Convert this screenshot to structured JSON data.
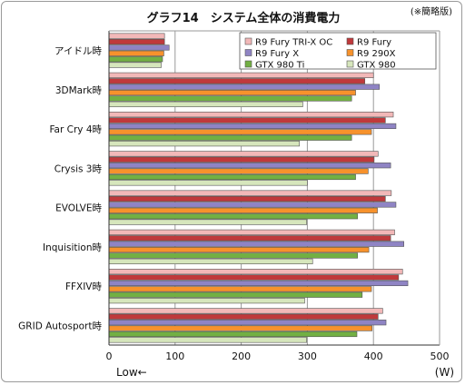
{
  "chart_data": {
    "type": "bar",
    "orientation": "horizontal",
    "title": "グラフ14　システム全体の消費電力",
    "note": "(※簡略版)",
    "xlabel": "",
    "ylabel": "",
    "unit": "(W)",
    "low_label": "Low←",
    "xlim": [
      0,
      500
    ],
    "xticks": [
      0,
      100,
      200,
      300,
      400,
      500
    ],
    "grid": true,
    "legend_position": "top-right",
    "categories": [
      "アイドル時",
      "3DMark時",
      "Far Cry 4時",
      "Crysis 3時",
      "EVOLVE時",
      "Inquisition時",
      "FFXIV時",
      "GRID Autosport時"
    ],
    "series": [
      {
        "name": "R9 Fury TRI-X OC",
        "color": "#f2b8b8",
        "values": [
          84,
          400,
          430,
          407,
          427,
          432,
          444,
          414
        ]
      },
      {
        "name": "R9 Fury",
        "color": "#c0393b",
        "values": [
          84,
          387,
          418,
          401,
          418,
          426,
          438,
          407
        ]
      },
      {
        "name": "R9 Fury X",
        "color": "#8f84c4",
        "values": [
          91,
          409,
          434,
          426,
          434,
          446,
          452,
          419
        ]
      },
      {
        "name": "R9 290X",
        "color": "#f7922c",
        "values": [
          83,
          373,
          397,
          392,
          406,
          393,
          397,
          398
        ]
      },
      {
        "name": "GTX 980 Ti",
        "color": "#72b043",
        "values": [
          81,
          367,
          367,
          373,
          376,
          376,
          383,
          375
        ]
      },
      {
        "name": "GTX 980",
        "color": "#d6e6bc",
        "values": [
          79,
          293,
          288,
          300,
          299,
          308,
          296,
          299
        ]
      }
    ]
  }
}
